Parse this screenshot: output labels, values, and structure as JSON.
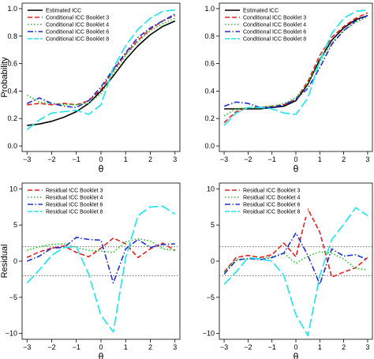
{
  "chart_data": [
    {
      "type": "line",
      "panel": "top-left",
      "xlabel": "θ",
      "ylabel": "Probability",
      "xlim": [
        -3,
        3
      ],
      "ylim": [
        0,
        1
      ],
      "xticks": [
        -3,
        -2,
        -1,
        0,
        1,
        2,
        3
      ],
      "yticks": [
        0.0,
        0.2,
        0.4,
        0.6,
        0.8,
        1.0
      ],
      "ytick_labels": [
        "0.0",
        "0.2",
        "0.4",
        "0.6",
        "0.8",
        "1.0"
      ],
      "legend_position": "top-left",
      "x": [
        -3,
        -2.5,
        -2,
        -1.5,
        -1,
        -0.5,
        0,
        0.5,
        1,
        1.5,
        2,
        2.5,
        3
      ],
      "series": [
        {
          "name": "Estimated ICC",
          "color": "#000000",
          "dash": "solid",
          "values": [
            0.15,
            0.16,
            0.18,
            0.21,
            0.25,
            0.31,
            0.4,
            0.51,
            0.63,
            0.73,
            0.81,
            0.87,
            0.91
          ]
        },
        {
          "name": "Conditional ICC Booklet 3",
          "color": "#e8201e",
          "dash": "dashed",
          "values": [
            0.3,
            0.31,
            0.3,
            0.31,
            0.3,
            0.33,
            0.41,
            0.55,
            0.67,
            0.77,
            0.85,
            0.91,
            0.95
          ]
        },
        {
          "name": "Conditional ICC Booklet 4",
          "color": "#22c522",
          "dash": "dotted",
          "values": [
            0.37,
            0.32,
            0.31,
            0.3,
            0.3,
            0.31,
            0.38,
            0.53,
            0.66,
            0.76,
            0.84,
            0.89,
            0.93
          ]
        },
        {
          "name": "Conditional ICC Booklet 6",
          "color": "#1f2fd6",
          "dash": "dashdot",
          "values": [
            0.31,
            0.35,
            0.31,
            0.29,
            0.28,
            0.33,
            0.43,
            0.56,
            0.68,
            0.79,
            0.86,
            0.91,
            0.96
          ]
        },
        {
          "name": "Conditional ICC Booklet 8",
          "color": "#19e6ee",
          "dash": "longdash",
          "values": [
            0.12,
            0.19,
            0.24,
            0.25,
            0.26,
            0.23,
            0.3,
            0.57,
            0.73,
            0.85,
            0.93,
            0.98,
            0.99
          ]
        }
      ]
    },
    {
      "type": "line",
      "panel": "top-right",
      "xlabel": "θ",
      "ylabel": "",
      "xlim": [
        -3,
        3
      ],
      "ylim": [
        0,
        1
      ],
      "xticks": [
        -3,
        -2,
        -1,
        0,
        1,
        2,
        3
      ],
      "yticks": [
        0.0,
        0.2,
        0.4,
        0.6,
        0.8,
        1.0
      ],
      "ytick_labels": [
        "0.0",
        "0.2",
        "0.4",
        "0.6",
        "0.8",
        "1.0"
      ],
      "legend_position": "top-left",
      "x": [
        -3,
        -2.5,
        -2,
        -1.5,
        -1,
        -0.5,
        0,
        0.5,
        1,
        1.5,
        2,
        2.5,
        3
      ],
      "series": [
        {
          "name": "Estimated ICC",
          "color": "#000000",
          "dash": "solid",
          "values": [
            0.27,
            0.27,
            0.27,
            0.27,
            0.28,
            0.29,
            0.33,
            0.45,
            0.63,
            0.77,
            0.86,
            0.92,
            0.95
          ]
        },
        {
          "name": "Conditional ICC Booklet 3",
          "color": "#e8201e",
          "dash": "dashed",
          "values": [
            0.17,
            0.25,
            0.28,
            0.28,
            0.29,
            0.3,
            0.34,
            0.47,
            0.66,
            0.79,
            0.87,
            0.93,
            0.97
          ]
        },
        {
          "name": "Conditional ICC Booklet 4",
          "color": "#22c522",
          "dash": "dotted",
          "values": [
            0.22,
            0.27,
            0.28,
            0.28,
            0.29,
            0.31,
            0.35,
            0.46,
            0.61,
            0.75,
            0.84,
            0.9,
            0.94
          ]
        },
        {
          "name": "Conditional ICC Booklet 6",
          "color": "#1f2fd6",
          "dash": "dashdot",
          "values": [
            0.29,
            0.32,
            0.31,
            0.28,
            0.28,
            0.3,
            0.34,
            0.42,
            0.57,
            0.74,
            0.84,
            0.91,
            0.95
          ]
        },
        {
          "name": "Conditional ICC Booklet 8",
          "color": "#19e6ee",
          "dash": "longdash",
          "values": [
            0.15,
            0.24,
            0.28,
            0.28,
            0.27,
            0.24,
            0.23,
            0.35,
            0.62,
            0.82,
            0.93,
            0.98,
            0.99
          ]
        }
      ]
    },
    {
      "type": "line",
      "panel": "bottom-left",
      "xlabel": "θ",
      "ylabel": "Residual",
      "xlim": [
        -3,
        3
      ],
      "ylim": [
        -10,
        10
      ],
      "xticks": [
        -3,
        -2,
        -1,
        0,
        1,
        2,
        3
      ],
      "yticks": [
        -10,
        -5,
        0,
        5,
        10
      ],
      "ytick_labels": [
        "−10",
        "−5",
        "0",
        "5",
        "10"
      ],
      "reference_lines": [
        2,
        -2
      ],
      "legend_position": "top-left",
      "x": [
        -3,
        -2.5,
        -2,
        -1.5,
        -1,
        -0.5,
        0,
        0.5,
        1,
        1.5,
        2,
        2.5,
        3
      ],
      "series": [
        {
          "name": "Residual ICC Booklet 3",
          "color": "#e8201e",
          "dash": "dashed",
          "values": [
            0.5,
            1.3,
            1.8,
            2.1,
            1.2,
            0.6,
            1.8,
            3.2,
            2.4,
            0.5,
            1.7,
            2.5,
            1.5
          ]
        },
        {
          "name": "Residual ICC Booklet 4",
          "color": "#22c522",
          "dash": "dotted",
          "values": [
            1.5,
            2.0,
            2.3,
            2.4,
            1.9,
            1.5,
            1.4,
            1.2,
            2.7,
            3.1,
            2.8,
            1.7,
            1.5
          ]
        },
        {
          "name": "Residual ICC Booklet 6",
          "color": "#1f2fd6",
          "dash": "dashdot",
          "values": [
            0.0,
            0.7,
            1.8,
            1.9,
            3.3,
            3.0,
            2.9,
            -3.0,
            1.7,
            3.0,
            1.9,
            2.3,
            2.4
          ]
        },
        {
          "name": "Residual ICC Booklet 8",
          "color": "#19e6ee",
          "dash": "longdash",
          "values": [
            -3.0,
            -1.2,
            0.8,
            1.9,
            2.0,
            -1.8,
            -7.5,
            -9.8,
            0.5,
            6.3,
            7.5,
            7.6,
            6.5
          ]
        }
      ]
    },
    {
      "type": "line",
      "panel": "bottom-right",
      "xlabel": "θ",
      "ylabel": "",
      "xlim": [
        -3,
        3
      ],
      "ylim": [
        -10,
        10
      ],
      "xticks": [
        -3,
        -2,
        -1,
        0,
        1,
        2,
        3
      ],
      "yticks": [
        -10,
        -5,
        0,
        5,
        10
      ],
      "ytick_labels": [
        "−10",
        "−5",
        "0",
        "5",
        "10"
      ],
      "reference_lines": [
        2,
        -2
      ],
      "legend_position": "top-left",
      "x": [
        -3,
        -2.5,
        -2,
        -1.5,
        -1,
        -0.5,
        0,
        0.5,
        1,
        1.5,
        2,
        2.5,
        3
      ],
      "series": [
        {
          "name": "Residual ICC Booklet 3",
          "color": "#e8201e",
          "dash": "dashed",
          "values": [
            -1.5,
            0.5,
            0.8,
            0.5,
            0.9,
            2.5,
            0.6,
            7.2,
            4.0,
            -2.2,
            -1.5,
            -0.9,
            0.5
          ]
        },
        {
          "name": "Residual ICC Booklet 4",
          "color": "#22c522",
          "dash": "dotted",
          "values": [
            -1.5,
            0.3,
            0.3,
            0.4,
            0.6,
            1.1,
            -0.3,
            0.7,
            1.3,
            1.1,
            0.3,
            -1.0,
            -1.2
          ]
        },
        {
          "name": "Residual ICC Booklet 6",
          "color": "#1f2fd6",
          "dash": "dashdot",
          "values": [
            -1.8,
            0.1,
            0.4,
            0.2,
            0.5,
            1.1,
            3.9,
            0.8,
            -3.2,
            1.7,
            0.7,
            0.9,
            0.2
          ]
        },
        {
          "name": "Residual ICC Booklet 8",
          "color": "#19e6ee",
          "dash": "longdash",
          "values": [
            -3.2,
            -1.5,
            0.5,
            0.3,
            0.0,
            -2.0,
            -7.4,
            -10.3,
            -2.0,
            3.0,
            5.1,
            7.4,
            6.3
          ]
        }
      ]
    }
  ]
}
